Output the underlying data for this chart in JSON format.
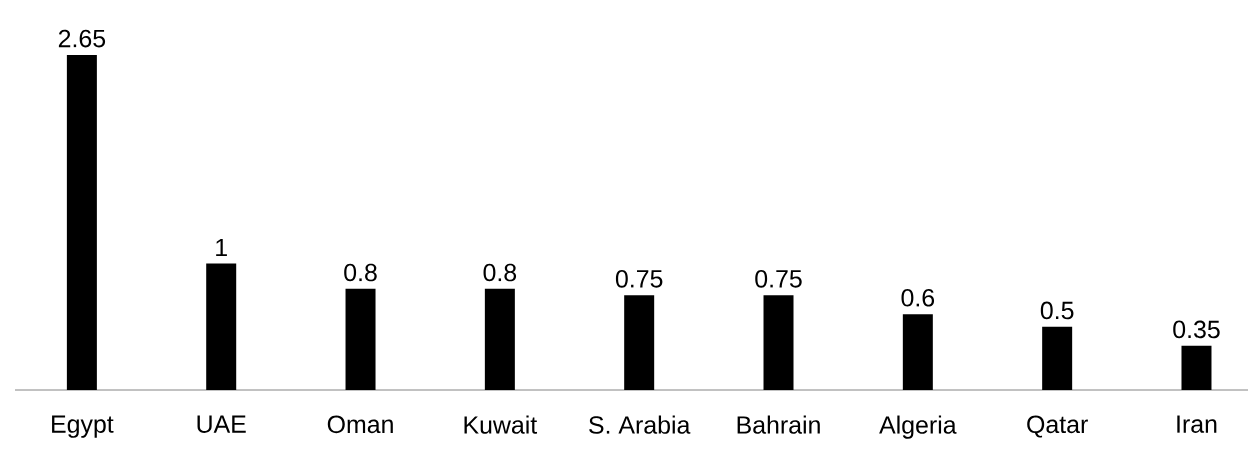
{
  "chart_data": {
    "type": "bar",
    "categories": [
      "Egypt",
      "UAE",
      "Oman",
      "Kuwait",
      "S. Arabia",
      "Bahrain",
      "Algeria",
      "Qatar",
      "Iran"
    ],
    "values": [
      2.65,
      1,
      0.8,
      0.8,
      0.75,
      0.75,
      0.6,
      0.5,
      0.35
    ],
    "color": "#000000",
    "data_labels": true
  }
}
